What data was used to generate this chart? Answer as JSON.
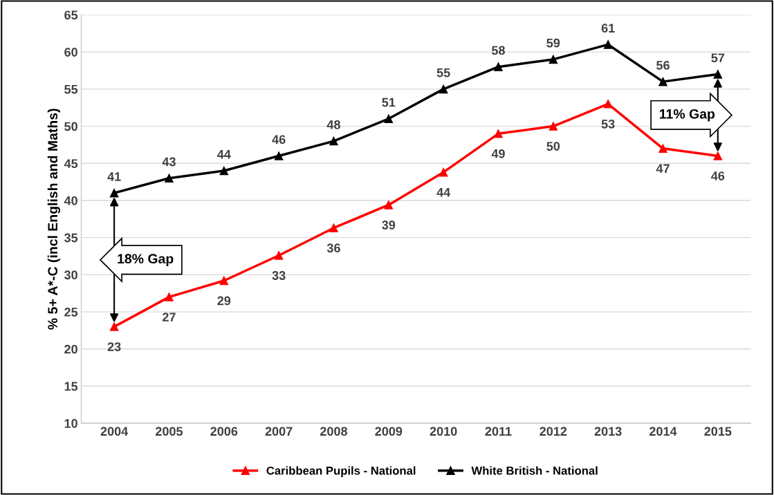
{
  "chart_data": {
    "type": "line",
    "ylabel": "% 5+ A*-C (incl English and Maths)",
    "categories": [
      "2004",
      "2005",
      "2006",
      "2007",
      "2008",
      "2009",
      "2010",
      "2011",
      "2012",
      "2013",
      "2014",
      "2015"
    ],
    "series": [
      {
        "name": "Caribbean Pupils - National",
        "color": "#ff0000",
        "values": [
          23,
          27,
          29.2,
          32.6,
          36.3,
          39.4,
          43.8,
          49,
          50,
          53,
          47,
          46
        ],
        "value_labels": [
          "23",
          "27",
          "29",
          "33",
          "36",
          "39",
          "44",
          "49",
          "50",
          "53",
          "47",
          "46"
        ]
      },
      {
        "name": "White British - National",
        "color": "#000000",
        "values": [
          41,
          43,
          44,
          46,
          48,
          51,
          55,
          58,
          59,
          61,
          56,
          57
        ],
        "value_labels": [
          "41",
          "43",
          "44",
          "46",
          "48",
          "51",
          "55",
          "58",
          "59",
          "61",
          "56",
          "57"
        ]
      }
    ],
    "annotations": [
      "18% Gap",
      "11% Gap"
    ],
    "ylim": [
      10,
      65
    ],
    "yticks": [
      10,
      15,
      20,
      25,
      30,
      35,
      40,
      45,
      50,
      55,
      60,
      65
    ],
    "grid": "y",
    "legend": "bottom",
    "marker": "triangle",
    "line_style": "solid"
  }
}
